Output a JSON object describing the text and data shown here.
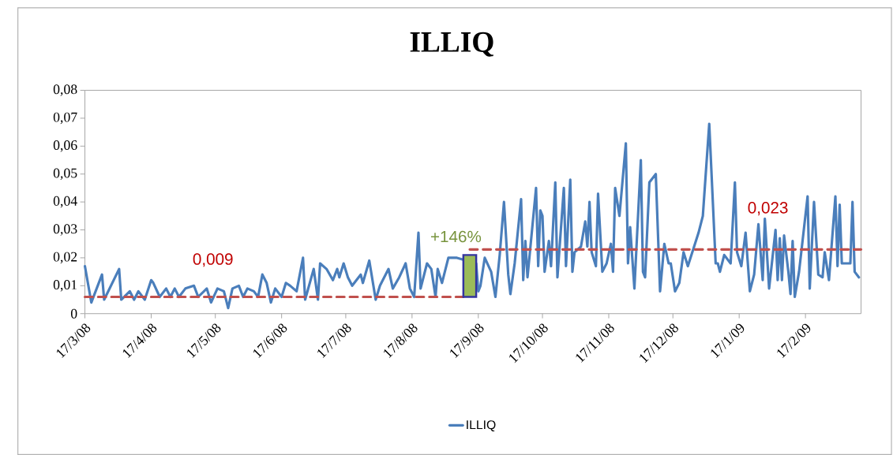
{
  "chart_data": {
    "type": "line",
    "title": "ILLIQ",
    "xlim": [
      "2008-03-17",
      "2009-03-15"
    ],
    "xticks": [
      {
        "value": "2008-03-17",
        "label": "17/3/08"
      },
      {
        "value": "2008-04-17",
        "label": "17/4/08"
      },
      {
        "value": "2008-05-17",
        "label": "17/5/08"
      },
      {
        "value": "2008-06-17",
        "label": "17/6/08"
      },
      {
        "value": "2008-07-17",
        "label": "17/7/08"
      },
      {
        "value": "2008-08-17",
        "label": "17/8/08"
      },
      {
        "value": "2008-09-17",
        "label": "17/9/08"
      },
      {
        "value": "2008-10-17",
        "label": "17/10/08"
      },
      {
        "value": "2008-11-17",
        "label": "17/11/08"
      },
      {
        "value": "2008-12-17",
        "label": "17/12/08"
      },
      {
        "value": "2009-01-17",
        "label": "17/1/09"
      },
      {
        "value": "2009-02-17",
        "label": "17/2/09"
      }
    ],
    "ylim": [
      0,
      0.08
    ],
    "yticks": [
      0,
      {
        "value": 0.01,
        "label": "0,01"
      },
      {
        "value": 0.02,
        "label": "0,02"
      },
      {
        "value": 0.03,
        "label": "0,03"
      },
      {
        "value": 0.04,
        "label": "0,04"
      },
      {
        "value": 0.05,
        "label": "0,05"
      },
      {
        "value": 0.06,
        "label": "0,06"
      },
      {
        "value": 0.07,
        "label": "0,07"
      },
      {
        "value": 0.08,
        "label": "0,08"
      }
    ],
    "legend": "bottom",
    "series": [
      {
        "name": "ILLIQ",
        "color": "#4a7ebb",
        "x": [
          "2008-03-17",
          "2008-03-20",
          "2008-03-25",
          "2008-03-26",
          "2008-04-02",
          "2008-04-03",
          "2008-04-07",
          "2008-04-09",
          "2008-04-11",
          "2008-04-14",
          "2008-04-17",
          "2008-04-18",
          "2008-04-21",
          "2008-04-24",
          "2008-04-26",
          "2008-04-28",
          "2008-04-30",
          "2008-05-03",
          "2008-05-07",
          "2008-05-09",
          "2008-05-13",
          "2008-05-15",
          "2008-05-18",
          "2008-05-21",
          "2008-05-23",
          "2008-05-25",
          "2008-05-28",
          "2008-05-30",
          "2008-06-01",
          "2008-06-04",
          "2008-06-06",
          "2008-06-08",
          "2008-06-10",
          "2008-06-12",
          "2008-06-14",
          "2008-06-17",
          "2008-06-19",
          "2008-06-21",
          "2008-06-24",
          "2008-06-27",
          "2008-06-28",
          "2008-07-02",
          "2008-07-04",
          "2008-07-05",
          "2008-07-08",
          "2008-07-11",
          "2008-07-13",
          "2008-07-14",
          "2008-07-16",
          "2008-07-18",
          "2008-07-20",
          "2008-07-24",
          "2008-07-25",
          "2008-07-28",
          "2008-07-31",
          "2008-08-02",
          "2008-08-06",
          "2008-08-08",
          "2008-08-11",
          "2008-08-14",
          "2008-08-16",
          "2008-08-18",
          "2008-08-20",
          "2008-08-21",
          "2008-08-24",
          "2008-08-26",
          "2008-08-28",
          "2008-08-29",
          "2008-08-31",
          "2008-09-03",
          "2008-09-05",
          "2008-09-07",
          "2008-09-16",
          "2008-09-17",
          "2008-09-18",
          "2008-09-20",
          "2008-09-23",
          "2008-09-25",
          "2008-09-27",
          "2008-09-29",
          "2008-10-01",
          "2008-10-02",
          "2008-10-04",
          "2008-10-07",
          "2008-10-08",
          "2008-10-09",
          "2008-10-10",
          "2008-10-14",
          "2008-10-15",
          "2008-10-16",
          "2008-10-17",
          "2008-10-18",
          "2008-10-20",
          "2008-10-21",
          "2008-10-23",
          "2008-10-24",
          "2008-10-27",
          "2008-10-28",
          "2008-10-30",
          "2008-10-31",
          "2008-11-01",
          "2008-11-04",
          "2008-11-06",
          "2008-11-07",
          "2008-11-08",
          "2008-11-09",
          "2008-11-11",
          "2008-11-12",
          "2008-11-14",
          "2008-11-16",
          "2008-11-18",
          "2008-11-19",
          "2008-11-20",
          "2008-11-22",
          "2008-11-25",
          "2008-11-26",
          "2008-11-27",
          "2008-11-29",
          "2008-12-02",
          "2008-12-03",
          "2008-12-04",
          "2008-12-06",
          "2008-12-09",
          "2008-12-11",
          "2008-12-13",
          "2008-12-15",
          "2008-12-16",
          "2008-12-18",
          "2008-12-20",
          "2008-12-22",
          "2008-12-24",
          "2008-12-29",
          "2008-12-31",
          "2009-01-03",
          "2009-01-06",
          "2009-01-07",
          "2009-01-08",
          "2009-01-10",
          "2009-01-13",
          "2009-01-15",
          "2009-01-16",
          "2009-01-18",
          "2009-01-20",
          "2009-01-22",
          "2009-01-24",
          "2009-01-26",
          "2009-01-28",
          "2009-01-29",
          "2009-01-31",
          "2009-02-03",
          "2009-02-04",
          "2009-02-05",
          "2009-02-06",
          "2009-02-07",
          "2009-02-09",
          "2009-02-10",
          "2009-02-11",
          "2009-02-12",
          "2009-02-14",
          "2009-02-18",
          "2009-02-19",
          "2009-02-21",
          "2009-02-23",
          "2009-02-25",
          "2009-02-26",
          "2009-02-28",
          "2009-03-03",
          "2009-03-04",
          "2009-03-05",
          "2009-03-06",
          "2009-03-10",
          "2009-03-11",
          "2009-03-12",
          "2009-03-14"
        ],
        "values": [
          0.017,
          0.004,
          0.014,
          0.005,
          0.016,
          0.005,
          0.008,
          0.005,
          0.008,
          0.005,
          0.012,
          0.011,
          0.006,
          0.009,
          0.006,
          0.009,
          0.006,
          0.009,
          0.01,
          0.006,
          0.009,
          0.004,
          0.009,
          0.008,
          0.002,
          0.009,
          0.01,
          0.006,
          0.009,
          0.008,
          0.006,
          0.014,
          0.011,
          0.004,
          0.009,
          0.006,
          0.011,
          0.01,
          0.008,
          0.02,
          0.005,
          0.016,
          0.005,
          0.018,
          0.016,
          0.012,
          0.016,
          0.013,
          0.018,
          0.013,
          0.01,
          0.014,
          0.011,
          0.019,
          0.005,
          0.01,
          0.016,
          0.009,
          0.013,
          0.018,
          0.009,
          0.006,
          0.029,
          0.009,
          0.018,
          0.016,
          0.006,
          0.016,
          0.011,
          0.02,
          0.02,
          0.02,
          0.018,
          0.008,
          0.01,
          0.02,
          0.015,
          0.006,
          0.021,
          0.04,
          0.014,
          0.007,
          0.018,
          0.041,
          0.012,
          0.026,
          0.013,
          0.045,
          0.017,
          0.037,
          0.035,
          0.015,
          0.026,
          0.017,
          0.047,
          0.013,
          0.045,
          0.017,
          0.048,
          0.015,
          0.022,
          0.024,
          0.033,
          0.024,
          0.04,
          0.022,
          0.017,
          0.043,
          0.015,
          0.018,
          0.025,
          0.015,
          0.045,
          0.035,
          0.061,
          0.018,
          0.031,
          0.009,
          0.055,
          0.015,
          0.013,
          0.047,
          0.05,
          0.008,
          0.025,
          0.018,
          0.018,
          0.008,
          0.011,
          0.022,
          0.017,
          0.029,
          0.035,
          0.068,
          0.018,
          0.018,
          0.015,
          0.021,
          0.018,
          0.047,
          0.022,
          0.017,
          0.029,
          0.008,
          0.014,
          0.032,
          0.012,
          0.034,
          0.009,
          0.03,
          0.012,
          0.027,
          0.012,
          0.028,
          0.015,
          0.007,
          0.026,
          0.006,
          0.015,
          0.042,
          0.009,
          0.04,
          0.014,
          0.013,
          0.022,
          0.012,
          0.042,
          0.017,
          0.039,
          0.018,
          0.018,
          0.04,
          0.015,
          0.013
        ]
      },
      {
        "type": "line",
        "color": "#c0504d",
        "line_style": "dashed",
        "x": [
          "2008-03-17",
          "2008-09-10"
        ],
        "values": [
          0.006,
          0.006
        ]
      },
      {
        "type": "line",
        "color": "#c0504d",
        "line_style": "dashed",
        "x": [
          "2008-09-13",
          "2009-03-15"
        ],
        "values": [
          0.023,
          0.023
        ]
      },
      {
        "type": "bar",
        "color": "#9bbb59",
        "x": [
          "2008-09-13"
        ],
        "base": [
          0.006
        ],
        "values": [
          0.015
        ]
      }
    ],
    "annotations": [
      "0,009",
      "+146%",
      "0,023"
    ]
  }
}
